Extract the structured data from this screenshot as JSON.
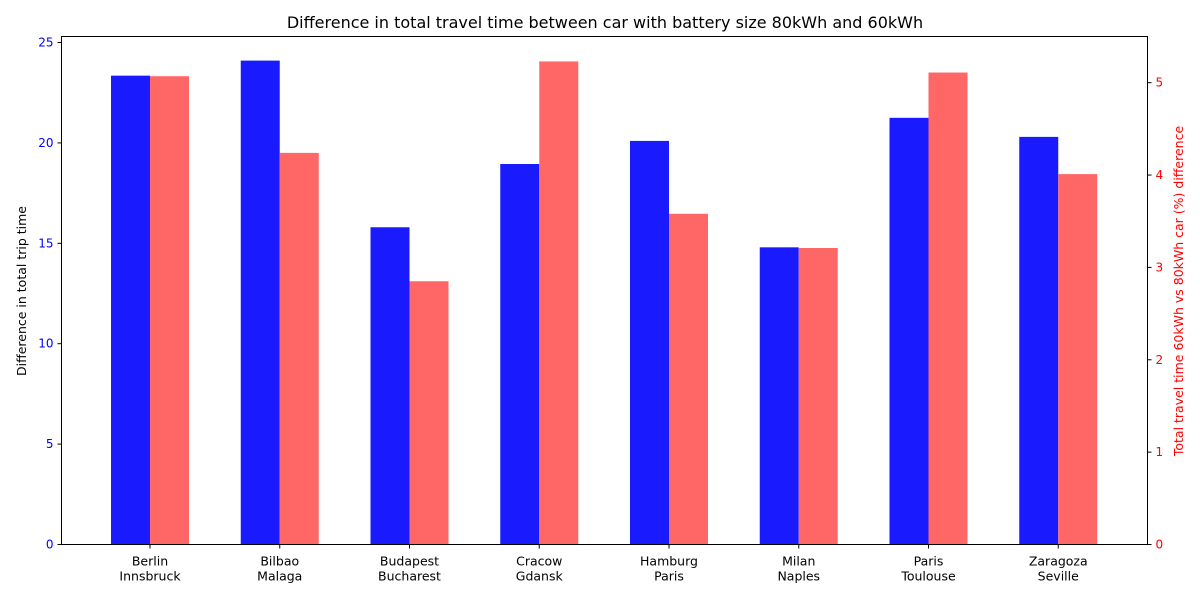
{
  "chart_data": {
    "type": "bar",
    "title": "Difference in total travel time between car with battery size 80kWh and 60kWh",
    "categories": [
      [
        "Berlin",
        "Innsbruck"
      ],
      [
        "Bilbao",
        "Malaga"
      ],
      [
        "Budapest",
        "Bucharest"
      ],
      [
        "Cracow",
        "Gdansk"
      ],
      [
        "Hamburg",
        "Paris"
      ],
      [
        "Milan",
        "Naples"
      ],
      [
        "Paris",
        "Toulouse"
      ],
      [
        "Zaragoza",
        "Seville"
      ]
    ],
    "series": [
      {
        "axis": "left",
        "color": "#1a1aff",
        "values": [
          23.35,
          24.1,
          15.8,
          18.95,
          20.1,
          14.8,
          21.25,
          20.3
        ]
      },
      {
        "axis": "right",
        "color": "#ff6666",
        "values": [
          5.07,
          4.24,
          2.85,
          5.23,
          3.58,
          3.21,
          5.11,
          4.01
        ]
      }
    ],
    "ylabel": "Difference in total trip time",
    "ylabel_right": "Total travel time 60kWh vs 80kWh car (%) difference",
    "ylim": [
      0,
      25.3
    ],
    "ylim_right": [
      0,
      5.5
    ],
    "yticks": [
      "0",
      "5",
      "10",
      "15",
      "20",
      "25"
    ],
    "yticks_right": [
      "0",
      "1",
      "2",
      "3",
      "4",
      "5"
    ],
    "left_tick_color": "#0000ff",
    "right_axis_color": "#ff0000",
    "grid": false,
    "legend": "none"
  }
}
